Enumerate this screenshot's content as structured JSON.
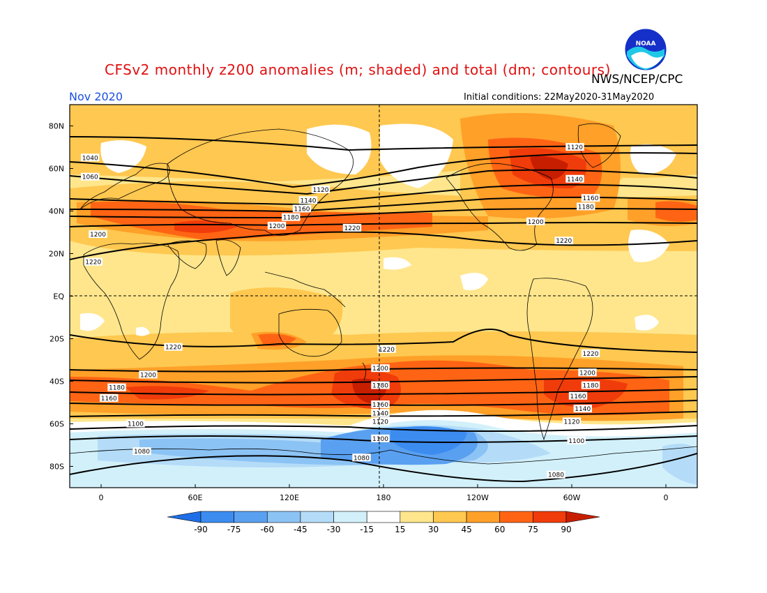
{
  "header": {
    "title": "CFSv2 monthly z200 anomalies (m; shaded) and total (dm; contours)",
    "title_color": "#e01010",
    "agency": "NWS/NCEP/CPC",
    "month": "Nov 2020",
    "month_color": "#1a4fe0",
    "initial_conditions": "Initial conditions: 22May2020-31May2020",
    "logo_text": "NOAA"
  },
  "axes": {
    "lat_labels": [
      "80N",
      "60N",
      "40N",
      "20N",
      "EQ",
      "20S",
      "40S",
      "60S",
      "80S"
    ],
    "lon_labels": [
      "0",
      "60E",
      "120E",
      "180",
      "120W",
      "60W",
      "0"
    ]
  },
  "colorbar": {
    "ticks": [
      "-90",
      "-75",
      "-60",
      "-45",
      "-30",
      "-15",
      "15",
      "30",
      "45",
      "60",
      "75",
      "90"
    ],
    "colors": [
      "#1e6ee6",
      "#3c8cf0",
      "#5aa0f0",
      "#8cc3f5",
      "#b4dcf8",
      "#d2f0fa",
      "#ffffff",
      "#ffe68c",
      "#ffc850",
      "#ffa028",
      "#ff6414",
      "#f03c0a",
      "#c81e00"
    ]
  },
  "contour_labels": [
    {
      "text": "1040",
      "lon": -7,
      "lat": 65
    },
    {
      "text": "1060",
      "lon": -7,
      "lat": 56
    },
    {
      "text": "1120",
      "lon": 140,
      "lat": 50
    },
    {
      "text": "1140",
      "lon": 132,
      "lat": 45
    },
    {
      "text": "1160",
      "lon": 128,
      "lat": 41
    },
    {
      "text": "1180",
      "lon": 121,
      "lat": 37
    },
    {
      "text": "1200",
      "lon": 112,
      "lat": 33
    },
    {
      "text": "1220",
      "lon": 160,
      "lat": 32
    },
    {
      "text": "1200",
      "lon": -2,
      "lat": 29
    },
    {
      "text": "1220",
      "lon": -5,
      "lat": 16
    },
    {
      "text": "1120",
      "lon": -58,
      "lat": 70
    },
    {
      "text": "1140",
      "lon": -58,
      "lat": 55
    },
    {
      "text": "1160",
      "lon": -48,
      "lat": 46
    },
    {
      "text": "1180",
      "lon": -51,
      "lat": 42
    },
    {
      "text": "1200",
      "lon": -83,
      "lat": 35
    },
    {
      "text": "1220",
      "lon": -65,
      "lat": 26
    },
    {
      "text": "1220",
      "lon": 46,
      "lat": -24
    },
    {
      "text": "1220",
      "lon": -178,
      "lat": -25
    },
    {
      "text": "1220",
      "lon": -48,
      "lat": -27
    },
    {
      "text": "1200",
      "lon": 30,
      "lat": -37
    },
    {
      "text": "1180",
      "lon": 10,
      "lat": -43
    },
    {
      "text": "1160",
      "lon": 5,
      "lat": -48
    },
    {
      "text": "1200",
      "lon": 178,
      "lat": -34
    },
    {
      "text": "1180",
      "lon": 178,
      "lat": -42
    },
    {
      "text": "1160",
      "lon": 178,
      "lat": -51
    },
    {
      "text": "1140",
      "lon": 178,
      "lat": -55
    },
    {
      "text": "1120",
      "lon": 178,
      "lat": -59
    },
    {
      "text": "1100",
      "lon": 178,
      "lat": -67
    },
    {
      "text": "1080",
      "lon": 166,
      "lat": -76
    },
    {
      "text": "1100",
      "lon": 22,
      "lat": -60
    },
    {
      "text": "1080",
      "lon": 26,
      "lat": -73
    },
    {
      "text": "1200",
      "lon": -50,
      "lat": -36
    },
    {
      "text": "1180",
      "lon": -48,
      "lat": -42
    },
    {
      "text": "1160",
      "lon": -56,
      "lat": -47
    },
    {
      "text": "1140",
      "lon": -53,
      "lat": -53
    },
    {
      "text": "1120",
      "lon": -60,
      "lat": -59
    },
    {
      "text": "1100",
      "lon": -57,
      "lat": -68
    },
    {
      "text": "1080",
      "lon": -70,
      "lat": -84
    }
  ]
}
